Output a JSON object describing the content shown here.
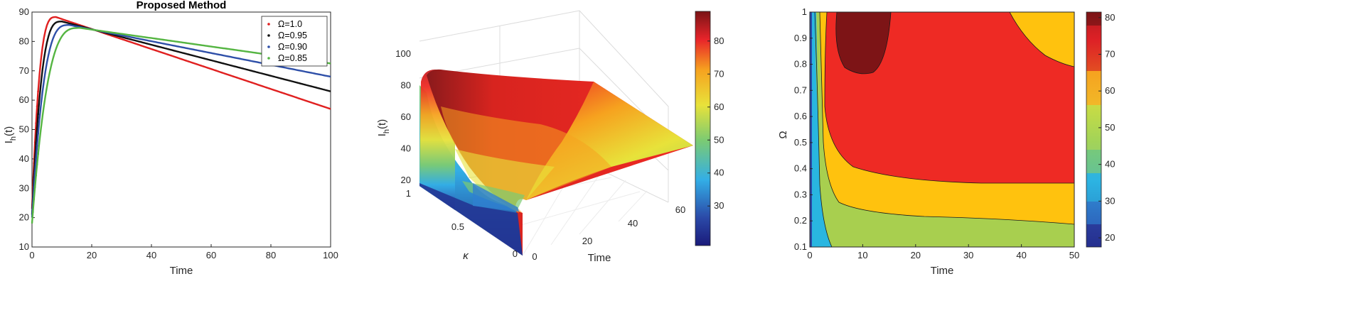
{
  "chart_data": [
    {
      "type": "line",
      "title": "Proposed Method",
      "xlabel": "Time",
      "ylabel_main": "I",
      "ylabel_sub": "h",
      "ylabel_tail": "(t)",
      "xlim": [
        0,
        100
      ],
      "ylim": [
        10,
        90
      ],
      "xticks": [
        0,
        20,
        40,
        60,
        80,
        100
      ],
      "yticks": [
        10,
        20,
        30,
        40,
        50,
        60,
        70,
        80,
        90
      ],
      "legend_position": "top-right",
      "series": [
        {
          "name": "Ω=1.0",
          "color": "#e02020",
          "peak_time": 8,
          "peak_value": 88.3,
          "start_value": 23,
          "end_value": 57
        },
        {
          "name": "Ω=0.95",
          "color": "#111111",
          "peak_time": 10,
          "peak_value": 86.8,
          "start_value": 21,
          "end_value": 63
        },
        {
          "name": "Ω=0.90",
          "color": "#2e4fa8",
          "peak_time": 12.5,
          "peak_value": 85.6,
          "start_value": 20,
          "end_value": 68
        },
        {
          "name": "Ω=0.85",
          "color": "#55b542",
          "peak_time": 16,
          "peak_value": 84.6,
          "start_value": 18,
          "end_value": 72.5
        }
      ]
    },
    {
      "type": "surface",
      "xlabel": "Time",
      "ylabel": "κ",
      "zlabel_main": "I",
      "zlabel_sub": "h",
      "zlabel_tail": "(t)",
      "xticks": [
        0,
        20,
        40,
        60
      ],
      "yticks": [
        "1",
        "0.5",
        "0"
      ],
      "zticks": [
        20,
        40,
        60,
        80,
        100
      ],
      "colorbar_ticks": [
        30,
        40,
        50,
        60,
        70,
        80
      ],
      "colormap": "jet"
    },
    {
      "type": "contour",
      "xlabel": "Time",
      "ylabel": "Ω",
      "xlim": [
        0,
        50
      ],
      "ylim": [
        0.1,
        1
      ],
      "xticks": [
        0,
        10,
        20,
        30,
        40,
        50
      ],
      "yticks": [
        "0.1",
        "0.2",
        "0.3",
        "0.4",
        "0.5",
        "0.6",
        "0.7",
        "0.8",
        "0.9",
        "1"
      ],
      "colorbar_ticks": [
        20,
        30,
        40,
        50,
        60,
        70,
        80
      ],
      "levels": [
        {
          "range": "<40",
          "color": "#29b6e0"
        },
        {
          "range": "40-60",
          "color": "#a8cf4f"
        },
        {
          "range": "60-70",
          "color": "#ffc20e"
        },
        {
          "range": "70-80",
          "color": "#ee2a24"
        },
        {
          "range": ">80",
          "color": "#7d1416"
        }
      ]
    }
  ]
}
